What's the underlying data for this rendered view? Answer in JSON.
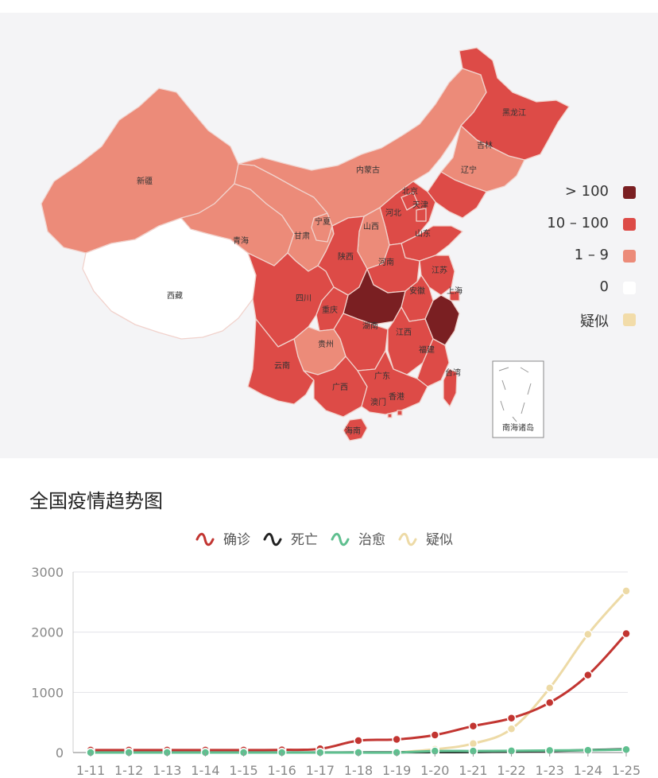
{
  "map": {
    "legend": [
      {
        "label": "> 100",
        "color": "#7a1f22"
      },
      {
        "label": "10 – 100",
        "color": "#dd4b47"
      },
      {
        "label": "1 – 9",
        "color": "#ec8b79"
      },
      {
        "label": "0",
        "color": "#ffffff"
      },
      {
        "label": "疑似",
        "color": "#f2dca9"
      }
    ],
    "provinces": [
      {
        "name": "新疆"
      },
      {
        "name": "西藏"
      },
      {
        "name": "青海"
      },
      {
        "name": "甘肃"
      },
      {
        "name": "宁夏"
      },
      {
        "name": "内蒙古"
      },
      {
        "name": "黑龙江"
      },
      {
        "name": "吉林"
      },
      {
        "name": "辽宁"
      },
      {
        "name": "北京"
      },
      {
        "name": "天津"
      },
      {
        "name": "河北"
      },
      {
        "name": "山西"
      },
      {
        "name": "山东"
      },
      {
        "name": "陕西"
      },
      {
        "name": "河南"
      },
      {
        "name": "江苏"
      },
      {
        "name": "上海"
      },
      {
        "name": "安徽"
      },
      {
        "name": "四川"
      },
      {
        "name": "重庆"
      },
      {
        "name": "湖南"
      },
      {
        "name": "江西"
      },
      {
        "name": "贵州"
      },
      {
        "name": "福建"
      },
      {
        "name": "台湾"
      },
      {
        "name": "云南"
      },
      {
        "name": "广西"
      },
      {
        "name": "广东"
      },
      {
        "name": "香港"
      },
      {
        "name": "澳门"
      },
      {
        "name": "海南"
      }
    ],
    "inset_label": "南海诸岛"
  },
  "chart_title": "全国疫情趋势图",
  "chart_data": {
    "type": "line",
    "categories": [
      "1-11",
      "1-12",
      "1-13",
      "1-14",
      "1-15",
      "1-16",
      "1-17",
      "1-18",
      "1-19",
      "1-20",
      "1-21",
      "1-22",
      "1-23",
      "1-24",
      "1-25"
    ],
    "ylim": [
      0,
      3000
    ],
    "yticks": [
      0,
      1000,
      2000,
      3000
    ],
    "grid": true,
    "legend_position": "top",
    "series": [
      {
        "name": "确诊",
        "color": "#c23531",
        "values": [
          41,
          41,
          41,
          41,
          41,
          45,
          62,
          198,
          218,
          291,
          440,
          571,
          830,
          1287,
          1975
        ]
      },
      {
        "name": "死亡",
        "color": "#222222",
        "values": [
          1,
          1,
          1,
          1,
          2,
          2,
          2,
          3,
          4,
          6,
          9,
          17,
          25,
          41,
          56
        ]
      },
      {
        "name": "治愈",
        "color": "#5fbf8f",
        "values": [
          0,
          0,
          0,
          0,
          0,
          0,
          0,
          0,
          0,
          25,
          25,
          28,
          34,
          38,
          49
        ]
      },
      {
        "name": "疑似",
        "color": "#eddaa6",
        "values": [
          null,
          null,
          null,
          null,
          null,
          null,
          null,
          null,
          0,
          54,
          149,
          393,
          1072,
          1965,
          2684
        ]
      }
    ]
  }
}
